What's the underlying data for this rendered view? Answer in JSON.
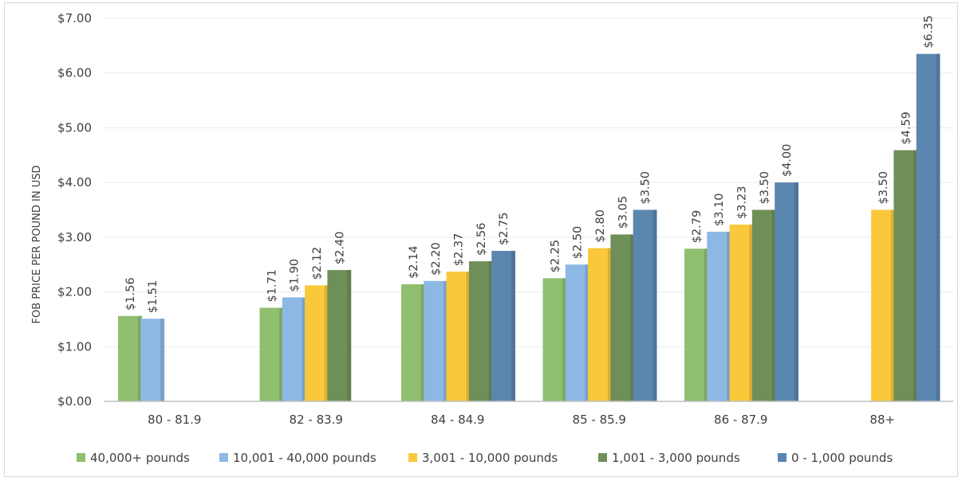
{
  "chart_data": {
    "type": "bar",
    "title": "",
    "xlabel": "",
    "ylabel": "FOB PRICE PER POUND IN USD",
    "ylim": [
      0,
      7
    ],
    "yticks": [
      "$0.00",
      "$1.00",
      "$2.00",
      "$3.00",
      "$4.00",
      "$5.00",
      "$6.00",
      "$7.00"
    ],
    "grid": true,
    "legend_position": "bottom",
    "categories": [
      "80 - 81.9",
      "82 - 83.9",
      "84 - 84.9",
      "85 - 85.9",
      "86 - 87.9",
      "88+"
    ],
    "series": [
      {
        "name": "40,000+ pounds",
        "color": "#8fbf6f",
        "values": [
          1.56,
          1.71,
          2.14,
          2.25,
          2.79,
          null
        ],
        "labels": [
          "$1.56",
          "$1.71",
          "$2.14",
          "$2.25",
          "$2.79",
          null
        ]
      },
      {
        "name": "10,001 - 40,000 pounds",
        "color": "#8db8e3",
        "values": [
          1.51,
          1.9,
          2.2,
          2.5,
          3.1,
          null
        ],
        "labels": [
          "$1.51",
          "$1.90",
          "$2.20",
          "$2.50",
          "$3.10",
          null
        ]
      },
      {
        "name": "3,001 - 10,000 pounds",
        "color": "#f9c93b",
        "values": [
          null,
          2.12,
          2.37,
          2.8,
          3.23,
          3.5
        ],
        "labels": [
          null,
          "$2.12",
          "$2.37",
          "$2.80",
          "$3.23",
          "$3.50"
        ]
      },
      {
        "name": "1,001 - 3,000 pounds",
        "color": "#6f8f58",
        "values": [
          null,
          2.4,
          2.56,
          3.05,
          3.5,
          4.59
        ],
        "labels": [
          null,
          "$2.40",
          "$2.56",
          "$3.05",
          "$3.50",
          "$4.59"
        ]
      },
      {
        "name": "0 - 1,000 pounds",
        "color": "#5b86b0",
        "values": [
          null,
          null,
          2.75,
          3.5,
          4.0,
          6.35
        ],
        "labels": [
          null,
          null,
          "$2.75",
          "$3.50",
          "$4.00",
          "$6.35"
        ]
      }
    ]
  }
}
